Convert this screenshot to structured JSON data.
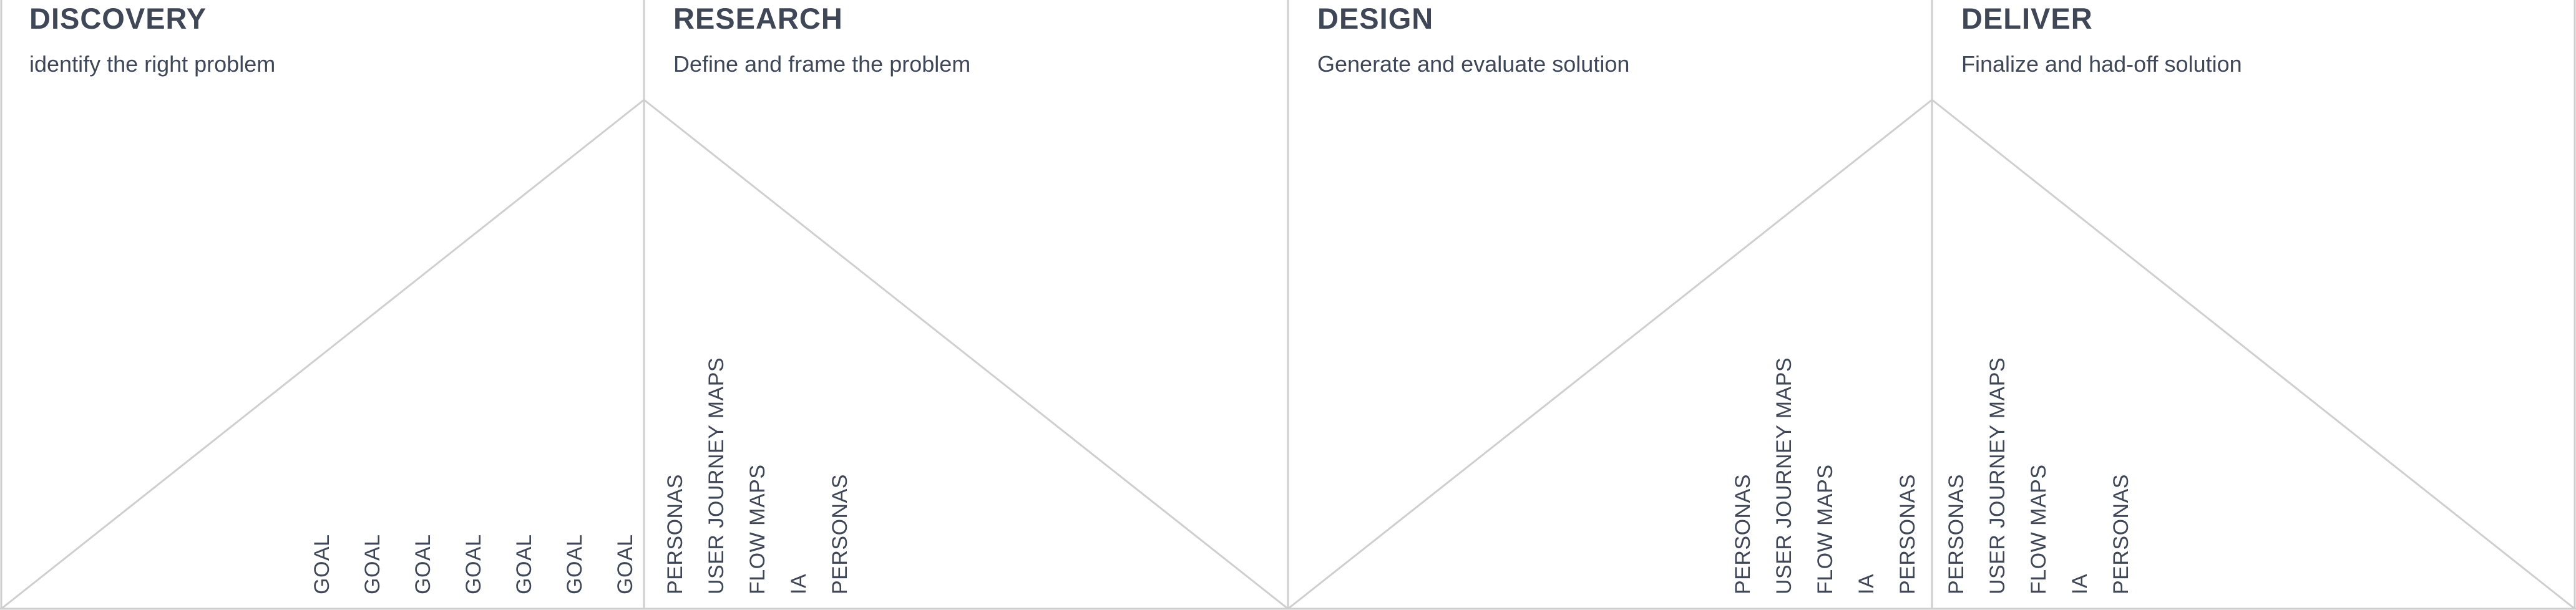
{
  "phases": [
    {
      "title": "DISCOVERY",
      "subtitle": "identify the right problem"
    },
    {
      "title": "RESEARCH",
      "subtitle": "Define and frame the problem"
    },
    {
      "title": "DESIGN",
      "subtitle": "Generate and evaluate solution"
    },
    {
      "title": "DELIVER",
      "subtitle": "Finalize and had-off solution"
    }
  ],
  "labels": {
    "discovery": [
      "GOAL",
      "GOAL",
      "GOAL",
      "GOAL",
      "GOAL",
      "GOAL",
      "GOAL"
    ],
    "research": [
      "PERSONAS",
      "USER JOURNEY MAPS",
      "FLOW MAPS",
      "IA",
      "PERSONAS"
    ],
    "design": [
      "PERSONAS",
      "USER JOURNEY MAPS",
      "FLOW MAPS",
      "IA",
      "PERSONAS"
    ],
    "deliver": [
      "PERSONAS",
      "USER JOURNEY MAPS",
      "FLOW MAPS",
      "IA",
      "PERSONAS"
    ]
  }
}
